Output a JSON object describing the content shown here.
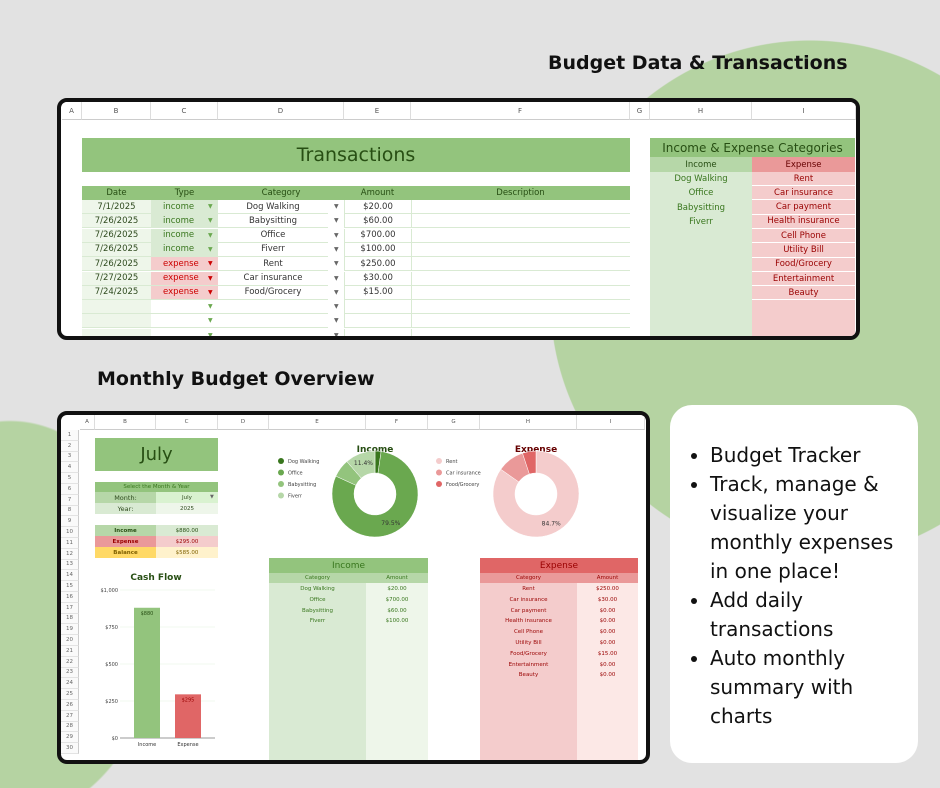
{
  "headings": {
    "top": "Budget Data & Transactions",
    "bottom": "Monthly Budget Overview"
  },
  "top_sheet": {
    "columns": [
      "A",
      "B",
      "C",
      "D",
      "E",
      "F",
      "G",
      "H",
      "I"
    ],
    "title": "Transactions",
    "headers": [
      "Date",
      "Type",
      "Category",
      "Amount",
      "Description"
    ],
    "rows": [
      {
        "date": "7/1/2025",
        "type": "income",
        "category": "Dog Walking",
        "amount": "$20.00"
      },
      {
        "date": "7/26/2025",
        "type": "income",
        "category": "Babysitting",
        "amount": "$60.00"
      },
      {
        "date": "7/26/2025",
        "type": "income",
        "category": "Office",
        "amount": "$700.00"
      },
      {
        "date": "7/26/2025",
        "type": "income",
        "category": "Fiverr",
        "amount": "$100.00"
      },
      {
        "date": "7/26/2025",
        "type": "expense",
        "category": "Rent",
        "amount": "$250.00"
      },
      {
        "date": "7/27/2025",
        "type": "expense",
        "category": "Car insurance",
        "amount": "$30.00"
      },
      {
        "date": "7/24/2025",
        "type": "expense",
        "category": "Food/Grocery",
        "amount": "$15.00"
      }
    ],
    "categories_title": "Income & Expense Categories",
    "income_header": "Income",
    "expense_header": "Expense",
    "income_categories": [
      "Dog Walking",
      "Office",
      "Babysitting",
      "Fiverr"
    ],
    "expense_categories": [
      "Rent",
      "Car insurance",
      "Car payment",
      "Health insurance",
      "Cell Phone",
      "Utility Bill",
      "Food/Grocery",
      "Entertainment",
      "Beauty"
    ]
  },
  "bottom_sheet": {
    "columns": [
      "A",
      "B",
      "C",
      "D",
      "E",
      "F",
      "G",
      "H",
      "I"
    ],
    "month_title": "July",
    "select_label": "Select the Month & Year",
    "month_label": "Month:",
    "month_value": "July",
    "year_label": "Year:",
    "year_value": "2025",
    "summary": [
      {
        "label": "Income",
        "value": "$880.00"
      },
      {
        "label": "Expense",
        "value": "$295.00"
      },
      {
        "label": "Balance",
        "value": "$585.00"
      }
    ],
    "income_table": {
      "title": "Income",
      "headers": [
        "Category",
        "Amount"
      ],
      "rows": [
        [
          "Dog Walking",
          "$20.00"
        ],
        [
          "Office",
          "$700.00"
        ],
        [
          "Babysitting",
          "$60.00"
        ],
        [
          "Fiverr",
          "$100.00"
        ]
      ]
    },
    "expense_table": {
      "title": "Expense",
      "headers": [
        "Category",
        "Amount"
      ],
      "rows": [
        [
          "Rent",
          "$250.00"
        ],
        [
          "Car insurance",
          "$30.00"
        ],
        [
          "Car payment",
          "$0.00"
        ],
        [
          "Health insurance",
          "$0.00"
        ],
        [
          "Cell Phone",
          "$0.00"
        ],
        [
          "Utility Bill",
          "$0.00"
        ],
        [
          "Food/Grocery",
          "$15.00"
        ],
        [
          "Entertainment",
          "$0.00"
        ],
        [
          "Beauty",
          "$0.00"
        ]
      ]
    }
  },
  "chart_data": [
    {
      "type": "bar",
      "title": "Cash Flow",
      "categories": [
        "Income",
        "Expense"
      ],
      "values": [
        880,
        295
      ],
      "data_labels": [
        "$880",
        "$295"
      ],
      "yticks": [
        "$0",
        "$250",
        "$500",
        "$750",
        "$1,000"
      ],
      "ylim": [
        0,
        1000
      ],
      "colors": [
        "#93c47d",
        "#e06666"
      ]
    },
    {
      "type": "pie",
      "title": "Income",
      "labels": [
        "Dog Walking",
        "Office",
        "Babysitting",
        "Fiverr"
      ],
      "values": [
        20,
        700,
        60,
        100
      ],
      "shown_labels": {
        "Office": "79.5%",
        "Fiverr": "11.4%"
      },
      "colors": [
        "#38761d",
        "#6aa84f",
        "#93c47d",
        "#b6d7a8"
      ],
      "legend": "left"
    },
    {
      "type": "pie",
      "title": "Expense",
      "labels": [
        "Rent",
        "Car insurance",
        "Food/Grocery"
      ],
      "values": [
        250,
        30,
        15
      ],
      "shown_labels": {
        "Rent": "84.7%"
      },
      "colors": [
        "#f4cccc",
        "#ea9999",
        "#e06666"
      ],
      "legend": "left"
    }
  ],
  "card": {
    "bullets": [
      "Budget Tracker",
      "Track, manage & visualize your monthly expenses in one place!",
      "Add daily transactions",
      "Auto monthly summary with charts"
    ]
  }
}
